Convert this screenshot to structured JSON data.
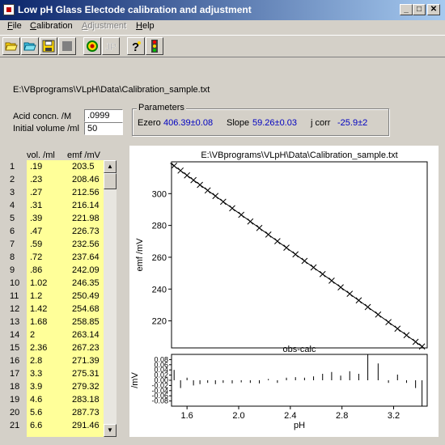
{
  "window": {
    "title": "Low pH Glass Electode calibration and adjustment"
  },
  "menu": {
    "items": [
      {
        "label": "File",
        "underline": "F"
      },
      {
        "label": "Calibration",
        "underline": "C"
      },
      {
        "label": "Adjustment",
        "underline": "A",
        "disabled": true
      },
      {
        "label": "Help",
        "underline": "H"
      }
    ]
  },
  "toolbar": {
    "buttons": [
      {
        "name": "open-folder-icon"
      },
      {
        "name": "open-folder-blue-icon"
      },
      {
        "name": "save-icon"
      },
      {
        "name": "stop-icon"
      },
      {
        "name": "target-icon"
      },
      {
        "name": "jp-icon"
      },
      {
        "name": "help-icon"
      },
      {
        "name": "traffic-light-icon"
      }
    ]
  },
  "file_path": "E:\\VBprograms\\VLpH\\Data\\Calibration_sample.txt",
  "inputs": {
    "acid_label": "Acid concn. /M",
    "acid_value": ".0999",
    "volume_label": "Initial volume /ml",
    "volume_value": "50"
  },
  "parameters": {
    "legend": "Parameters",
    "ezero_label": "Ezero",
    "ezero_value": "406.39±0.08",
    "slope_label": "Slope",
    "slope_value": "59.26±0.03",
    "jcorr_label": "j corr",
    "jcorr_value": "-25.9±2"
  },
  "table": {
    "headers": {
      "vol": "vol. /ml",
      "emf": "emf /mV"
    },
    "rows": [
      {
        "n": "1",
        "vol": ".19",
        "emf": "203.5"
      },
      {
        "n": "2",
        "vol": ".23",
        "emf": "208.46"
      },
      {
        "n": "3",
        "vol": ".27",
        "emf": "212.56"
      },
      {
        "n": "4",
        "vol": ".31",
        "emf": "216.14"
      },
      {
        "n": "5",
        "vol": ".39",
        "emf": "221.98"
      },
      {
        "n": "6",
        "vol": ".47",
        "emf": "226.73"
      },
      {
        "n": "7",
        "vol": ".59",
        "emf": "232.56"
      },
      {
        "n": "8",
        "vol": ".72",
        "emf": "237.64"
      },
      {
        "n": "9",
        "vol": ".86",
        "emf": "242.09"
      },
      {
        "n": "10",
        "vol": "1.02",
        "emf": "246.35"
      },
      {
        "n": "11",
        "vol": "1.2",
        "emf": "250.49"
      },
      {
        "n": "12",
        "vol": "1.42",
        "emf": "254.68"
      },
      {
        "n": "13",
        "vol": "1.68",
        "emf": "258.85"
      },
      {
        "n": "14",
        "vol": "2",
        "emf": "263.14"
      },
      {
        "n": "15",
        "vol": "2.36",
        "emf": "267.23"
      },
      {
        "n": "16",
        "vol": "2.8",
        "emf": "271.39"
      },
      {
        "n": "17",
        "vol": "3.3",
        "emf": "275.31"
      },
      {
        "n": "18",
        "vol": "3.9",
        "emf": "279.32"
      },
      {
        "n": "19",
        "vol": "4.6",
        "emf": "283.18"
      },
      {
        "n": "20",
        "vol": "5.6",
        "emf": "287.73"
      },
      {
        "n": "21",
        "vol": "6.6",
        "emf": "291.46"
      }
    ]
  },
  "chart_data": [
    {
      "type": "scatter",
      "title": "E:\\VBprograms\\VLpH\\Data\\Calibration_sample.txt",
      "xlabel": "",
      "ylabel": "emf /mV",
      "xlim": [
        1.48,
        3.46
      ],
      "ylim": [
        203,
        320
      ],
      "yticks": [
        220,
        240,
        260,
        280,
        300
      ],
      "marker": "+",
      "fit_line": true,
      "x": [
        1.5,
        1.55,
        1.6,
        1.65,
        1.7,
        1.76,
        1.82,
        1.88,
        1.95,
        2.02,
        2.09,
        2.16,
        2.23,
        2.3,
        2.37,
        2.44,
        2.51,
        2.58,
        2.65,
        2.72,
        2.79,
        2.86,
        2.93,
        3.0,
        3.08,
        3.16,
        3.23,
        3.3,
        3.37,
        3.42
      ],
      "y": [
        317.5,
        314.5,
        311.5,
        308.5,
        305.5,
        302,
        298.5,
        294.9,
        290.8,
        286.7,
        282.5,
        278.4,
        274.3,
        270.1,
        266,
        261.8,
        257.7,
        253.6,
        249.4,
        245.3,
        241.1,
        237,
        232.9,
        228.7,
        224,
        219.2,
        215.1,
        211,
        206.8,
        203.9
      ]
    },
    {
      "type": "bar",
      "title": "obs-calc",
      "xlabel": "pH",
      "ylabel": "/mV",
      "xlim": [
        1.48,
        3.46
      ],
      "ylim": [
        -0.1,
        0.1
      ],
      "xticks": [
        1.6,
        2.0,
        2.4,
        2.8,
        3.2
      ],
      "xtick_labels": [
        "1.6",
        "2.0",
        "2.4",
        "2.8",
        "3.2"
      ],
      "yticks": [
        0.08,
        0.06,
        0.04,
        0.02,
        0.0,
        -0.02,
        -0.04,
        -0.06,
        -0.08
      ],
      "ytick_labels": [
        "0.08",
        "0.06",
        "0.04",
        "0.02",
        "0.00",
        "-0.02",
        "-0.04",
        "-0.06",
        "-0.08"
      ],
      "x": [
        1.5,
        1.55,
        1.6,
        1.65,
        1.7,
        1.76,
        1.82,
        1.88,
        1.95,
        2.02,
        2.09,
        2.16,
        2.23,
        2.3,
        2.37,
        2.44,
        2.51,
        2.58,
        2.65,
        2.72,
        2.79,
        2.86,
        2.93,
        3.0,
        3.08,
        3.16,
        3.23,
        3.3,
        3.37,
        3.42
      ],
      "values": [
        0.04,
        -0.03,
        0.01,
        -0.02,
        -0.015,
        -0.01,
        -0.015,
        -0.01,
        -0.012,
        -0.008,
        -0.01,
        -0.012,
        0.005,
        -0.01,
        0.01,
        0.012,
        0.01,
        0.015,
        0.025,
        0.032,
        0.018,
        0.035,
        0.025,
        0.1,
        0.065,
        -0.01,
        0.022,
        -0.01,
        -0.03,
        -0.1
      ]
    }
  ]
}
